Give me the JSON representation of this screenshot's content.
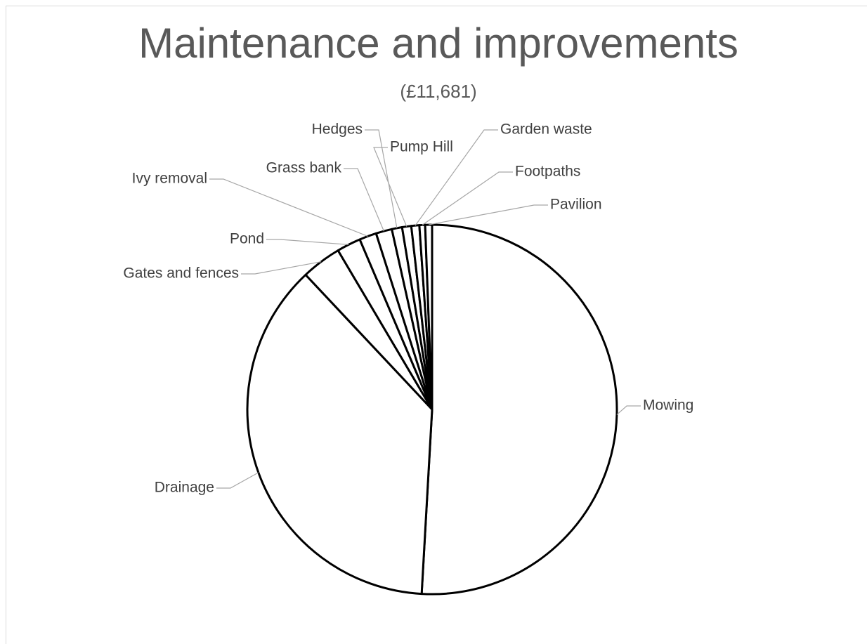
{
  "chart_data": {
    "type": "pie",
    "title": "Maintenance and improvements",
    "subtitle": "(£11,681)",
    "categories": [
      "Mowing",
      "Drainage",
      "Gates and fences",
      "Pond",
      "Ivy removal",
      "Grass bank",
      "Hedges",
      "Pump Hill",
      "Garden waste",
      "Footpaths",
      "Pavilion"
    ],
    "values": [
      50.9,
      37.1,
      3.5,
      2.1,
      1.5,
      1.4,
      0.9,
      0.8,
      0.7,
      0.5,
      0.6
    ],
    "color": "#ffffff"
  }
}
